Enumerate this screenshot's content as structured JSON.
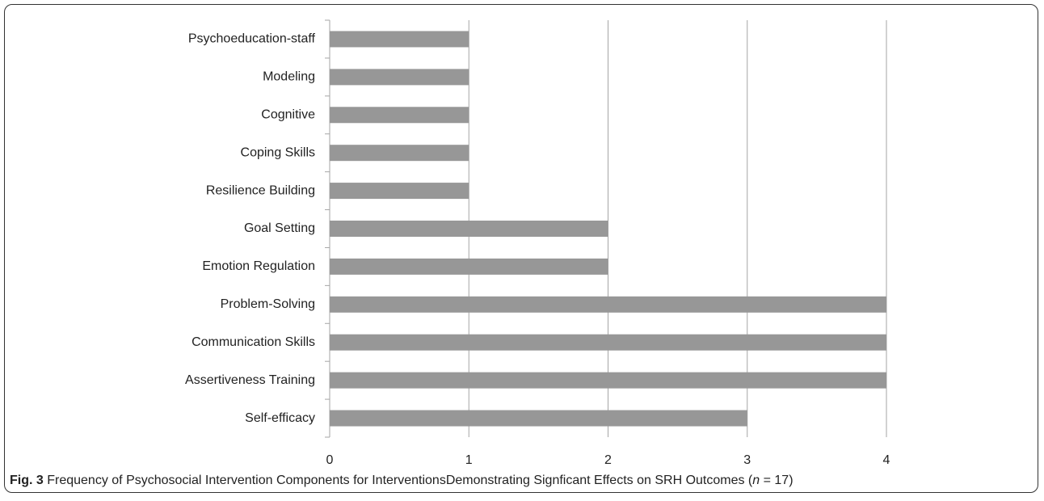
{
  "chart_data": {
    "type": "bar",
    "orientation": "horizontal",
    "categories": [
      "Psychoeducation-staff",
      "Modeling",
      "Cognitive",
      "Coping Skills",
      "Resilience Building",
      "Goal Setting",
      "Emotion Regulation",
      "Problem-Solving",
      "Communication Skills",
      "Assertiveness Training",
      "Self-efficacy"
    ],
    "values": [
      1,
      1,
      1,
      1,
      1,
      2,
      2,
      4,
      4,
      4,
      3
    ],
    "color": "#979797",
    "xlim": [
      0,
      4
    ],
    "xticks": [
      0,
      1,
      2,
      3,
      4
    ],
    "grid": true,
    "caption": {
      "label": "Fig. 3",
      "text": "Frequency of Psychosocial Intervention Components for InterventionsDemonstrating Signficant Effects on SRH Outcomes (",
      "n": "n",
      "end": " = 17)"
    }
  }
}
